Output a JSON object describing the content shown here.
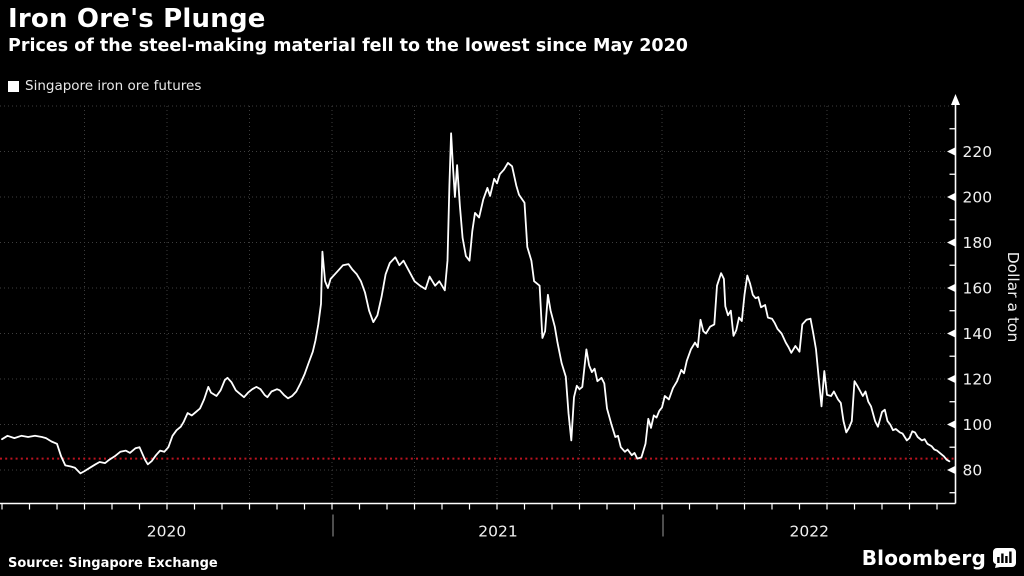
{
  "header": {
    "title": "Iron Ore's Plunge",
    "subtitle": "Prices of the steel-making material fell to the lowest since May 2020"
  },
  "legend": {
    "label": "Singapore iron ore futures",
    "marker_color": "#ffffff"
  },
  "footer": {
    "source": "Source: Singapore Exchange",
    "brand": "Bloomberg"
  },
  "colors": {
    "background": "#000000",
    "text": "#ffffff",
    "axis": "#ffffff",
    "gridline": "#3e3e3e",
    "series_line": "#ffffff",
    "reference_line": "#bb1320",
    "tick_label": "#f0f0f0",
    "year_separator": "#9a9a9a"
  },
  "chart_data": {
    "type": "line",
    "title": "Singapore iron ore futures",
    "xlabel": "",
    "ylabel": "Dollar a ton",
    "x_unit": "months since Jan 2020",
    "y_ticks": [
      80,
      100,
      120,
      140,
      160,
      180,
      200,
      220
    ],
    "y_minor_ticks": [
      70,
      90,
      110,
      130,
      150,
      170,
      190,
      210,
      230
    ],
    "h_gridline_values": [
      80,
      100,
      120,
      140,
      160,
      180,
      200,
      220,
      240
    ],
    "v_gridline_months": [
      3,
      6,
      9,
      12,
      15,
      18,
      21,
      24,
      27,
      30,
      33
    ],
    "year_labels": [
      "2020",
      "2021",
      "2022"
    ],
    "year_boundaries_months": [
      0,
      12,
      24
    ],
    "ylim": [
      65,
      240
    ],
    "grid": true,
    "legend_position": "top-left",
    "reference_line": {
      "value": 85,
      "color": "#bb1320",
      "style": "dotted"
    },
    "series": [
      {
        "name": "Singapore iron ore futures",
        "color": "#ffffff",
        "points": [
          [
            0,
            93.5
          ],
          [
            0.2,
            95
          ],
          [
            0.45,
            94
          ],
          [
            0.7,
            95
          ],
          [
            0.95,
            94.5
          ],
          [
            1.2,
            95
          ],
          [
            1.45,
            94.5
          ],
          [
            1.6,
            94
          ],
          [
            1.8,
            92.5
          ],
          [
            2,
            91.5
          ],
          [
            2.15,
            86
          ],
          [
            2.3,
            82
          ],
          [
            2.5,
            81.5
          ],
          [
            2.65,
            81
          ],
          [
            2.85,
            78.5
          ],
          [
            3,
            79.5
          ],
          [
            3.2,
            81
          ],
          [
            3.4,
            82.5
          ],
          [
            3.55,
            83.5
          ],
          [
            3.75,
            83
          ],
          [
            3.9,
            84.5
          ],
          [
            4.1,
            86
          ],
          [
            4.3,
            88
          ],
          [
            4.5,
            88.5
          ],
          [
            4.65,
            87.5
          ],
          [
            4.85,
            89.5
          ],
          [
            5,
            90
          ],
          [
            5.2,
            84.5
          ],
          [
            5.3,
            82.5
          ],
          [
            5.45,
            84
          ],
          [
            5.6,
            86.5
          ],
          [
            5.75,
            88.5
          ],
          [
            5.9,
            88
          ],
          [
            6.05,
            90
          ],
          [
            6.2,
            95
          ],
          [
            6.35,
            97.5
          ],
          [
            6.5,
            99
          ],
          [
            6.6,
            101
          ],
          [
            6.75,
            105
          ],
          [
            6.9,
            104
          ],
          [
            7.05,
            105.5
          ],
          [
            7.2,
            107
          ],
          [
            7.35,
            111
          ],
          [
            7.5,
            116.5
          ],
          [
            7.6,
            114
          ],
          [
            7.8,
            112.5
          ],
          [
            7.95,
            115
          ],
          [
            8.1,
            119.5
          ],
          [
            8.2,
            120.5
          ],
          [
            8.35,
            118.5
          ],
          [
            8.5,
            115
          ],
          [
            8.65,
            113.5
          ],
          [
            8.8,
            112
          ],
          [
            8.95,
            114
          ],
          [
            9.1,
            115.5
          ],
          [
            9.25,
            116.5
          ],
          [
            9.4,
            115.5
          ],
          [
            9.55,
            113
          ],
          [
            9.65,
            112
          ],
          [
            9.8,
            114.5
          ],
          [
            10,
            115.5
          ],
          [
            10.1,
            115
          ],
          [
            10.25,
            113
          ],
          [
            10.4,
            111.5
          ],
          [
            10.55,
            112.5
          ],
          [
            10.7,
            114.5
          ],
          [
            10.85,
            118
          ],
          [
            11,
            122
          ],
          [
            11.15,
            127
          ],
          [
            11.3,
            132
          ],
          [
            11.4,
            137
          ],
          [
            11.5,
            144
          ],
          [
            11.6,
            153
          ],
          [
            11.65,
            176
          ],
          [
            11.75,
            163
          ],
          [
            11.85,
            160
          ],
          [
            11.95,
            164
          ],
          [
            12.1,
            166
          ],
          [
            12.25,
            168
          ],
          [
            12.4,
            170
          ],
          [
            12.6,
            170.5
          ],
          [
            12.75,
            168
          ],
          [
            12.9,
            166
          ],
          [
            13.05,
            163
          ],
          [
            13.2,
            158
          ],
          [
            13.35,
            150
          ],
          [
            13.5,
            145
          ],
          [
            13.65,
            148
          ],
          [
            13.8,
            156
          ],
          [
            13.95,
            166
          ],
          [
            14.1,
            171
          ],
          [
            14.3,
            173.5
          ],
          [
            14.45,
            170
          ],
          [
            14.6,
            172
          ],
          [
            14.8,
            167.5
          ],
          [
            15,
            163
          ],
          [
            15.2,
            161
          ],
          [
            15.4,
            159.5
          ],
          [
            15.55,
            165
          ],
          [
            15.75,
            161
          ],
          [
            15.9,
            163
          ],
          [
            16.1,
            159
          ],
          [
            16.2,
            172
          ],
          [
            16.27,
            205
          ],
          [
            16.33,
            228
          ],
          [
            16.4,
            213
          ],
          [
            16.47,
            200
          ],
          [
            16.55,
            214
          ],
          [
            16.65,
            196
          ],
          [
            16.75,
            182
          ],
          [
            16.87,
            174
          ],
          [
            17,
            172
          ],
          [
            17.1,
            185
          ],
          [
            17.2,
            193
          ],
          [
            17.35,
            191
          ],
          [
            17.5,
            199
          ],
          [
            17.65,
            204
          ],
          [
            17.75,
            200.5
          ],
          [
            17.9,
            208
          ],
          [
            18,
            206
          ],
          [
            18.1,
            210
          ],
          [
            18.25,
            212
          ],
          [
            18.4,
            215
          ],
          [
            18.55,
            213.5
          ],
          [
            18.7,
            205
          ],
          [
            18.8,
            201
          ],
          [
            19,
            197.5
          ],
          [
            19.1,
            178
          ],
          [
            19.25,
            172
          ],
          [
            19.35,
            163
          ],
          [
            19.55,
            161
          ],
          [
            19.65,
            138
          ],
          [
            19.75,
            141
          ],
          [
            19.85,
            157
          ],
          [
            19.95,
            150
          ],
          [
            20.1,
            143
          ],
          [
            20.2,
            136
          ],
          [
            20.35,
            127
          ],
          [
            20.5,
            121
          ],
          [
            20.6,
            105
          ],
          [
            20.7,
            93
          ],
          [
            20.8,
            112
          ],
          [
            20.9,
            117
          ],
          [
            21,
            115.5
          ],
          [
            21.1,
            116.5
          ],
          [
            21.25,
            133
          ],
          [
            21.35,
            126
          ],
          [
            21.45,
            123
          ],
          [
            21.55,
            124.5
          ],
          [
            21.65,
            119
          ],
          [
            21.8,
            120.5
          ],
          [
            21.9,
            118
          ],
          [
            22,
            107
          ],
          [
            22.15,
            100.5
          ],
          [
            22.3,
            94.5
          ],
          [
            22.4,
            95
          ],
          [
            22.5,
            90
          ],
          [
            22.65,
            88
          ],
          [
            22.75,
            89
          ],
          [
            22.9,
            86.5
          ],
          [
            23,
            87.5
          ],
          [
            23.1,
            85
          ],
          [
            23.25,
            85.5
          ],
          [
            23.4,
            91.5
          ],
          [
            23.5,
            102.5
          ],
          [
            23.6,
            98.5
          ],
          [
            23.7,
            104
          ],
          [
            23.8,
            103
          ],
          [
            23.9,
            106
          ],
          [
            24,
            107.5
          ],
          [
            24.1,
            112.5
          ],
          [
            24.25,
            111
          ],
          [
            24.4,
            116
          ],
          [
            24.55,
            119
          ],
          [
            24.7,
            124
          ],
          [
            24.8,
            122.5
          ],
          [
            24.9,
            128
          ],
          [
            25.05,
            133
          ],
          [
            25.2,
            136
          ],
          [
            25.3,
            134
          ],
          [
            25.4,
            146
          ],
          [
            25.5,
            141
          ],
          [
            25.6,
            140
          ],
          [
            25.75,
            143
          ],
          [
            25.9,
            144
          ],
          [
            26,
            161
          ],
          [
            26.15,
            166.5
          ],
          [
            26.25,
            164
          ],
          [
            26.3,
            152
          ],
          [
            26.4,
            148
          ],
          [
            26.5,
            150
          ],
          [
            26.6,
            139
          ],
          [
            26.7,
            141.5
          ],
          [
            26.8,
            147
          ],
          [
            26.9,
            145.5
          ],
          [
            27,
            157
          ],
          [
            27.1,
            165.5
          ],
          [
            27.2,
            162
          ],
          [
            27.3,
            157
          ],
          [
            27.4,
            155.5
          ],
          [
            27.5,
            156
          ],
          [
            27.6,
            151.5
          ],
          [
            27.75,
            152.5
          ],
          [
            27.85,
            147
          ],
          [
            28,
            146.5
          ],
          [
            28.1,
            144.5
          ],
          [
            28.2,
            142
          ],
          [
            28.35,
            140
          ],
          [
            28.5,
            136
          ],
          [
            28.6,
            134
          ],
          [
            28.7,
            131.5
          ],
          [
            28.85,
            134.5
          ],
          [
            29,
            132
          ],
          [
            29.1,
            144
          ],
          [
            29.25,
            146
          ],
          [
            29.4,
            146.5
          ],
          [
            29.5,
            140
          ],
          [
            29.6,
            133
          ],
          [
            29.7,
            120
          ],
          [
            29.8,
            108
          ],
          [
            29.9,
            123.5
          ],
          [
            30,
            113
          ],
          [
            30.15,
            112.5
          ],
          [
            30.25,
            114.5
          ],
          [
            30.4,
            111
          ],
          [
            30.5,
            109.5
          ],
          [
            30.6,
            101.5
          ],
          [
            30.7,
            96.5
          ],
          [
            30.8,
            98.5
          ],
          [
            30.9,
            101.5
          ],
          [
            31,
            119
          ],
          [
            31.1,
            117
          ],
          [
            31.3,
            112.5
          ],
          [
            31.4,
            114.5
          ],
          [
            31.5,
            110
          ],
          [
            31.6,
            108
          ],
          [
            31.75,
            101.5
          ],
          [
            31.85,
            99
          ],
          [
            32,
            105.5
          ],
          [
            32.1,
            106.5
          ],
          [
            32.2,
            101.5
          ],
          [
            32.3,
            100
          ],
          [
            32.4,
            97.5
          ],
          [
            32.5,
            98
          ],
          [
            32.65,
            96.5
          ],
          [
            32.75,
            96
          ],
          [
            32.9,
            93
          ],
          [
            33,
            94
          ],
          [
            33.1,
            97
          ],
          [
            33.2,
            96.5
          ],
          [
            33.3,
            94.5
          ],
          [
            33.45,
            93
          ],
          [
            33.55,
            93.5
          ],
          [
            33.65,
            91.5
          ],
          [
            33.8,
            90.5
          ],
          [
            33.9,
            89
          ],
          [
            34,
            88.5
          ],
          [
            34.1,
            87.5
          ],
          [
            34.25,
            86
          ],
          [
            34.35,
            84.5
          ],
          [
            34.45,
            83.8
          ]
        ]
      }
    ]
  }
}
